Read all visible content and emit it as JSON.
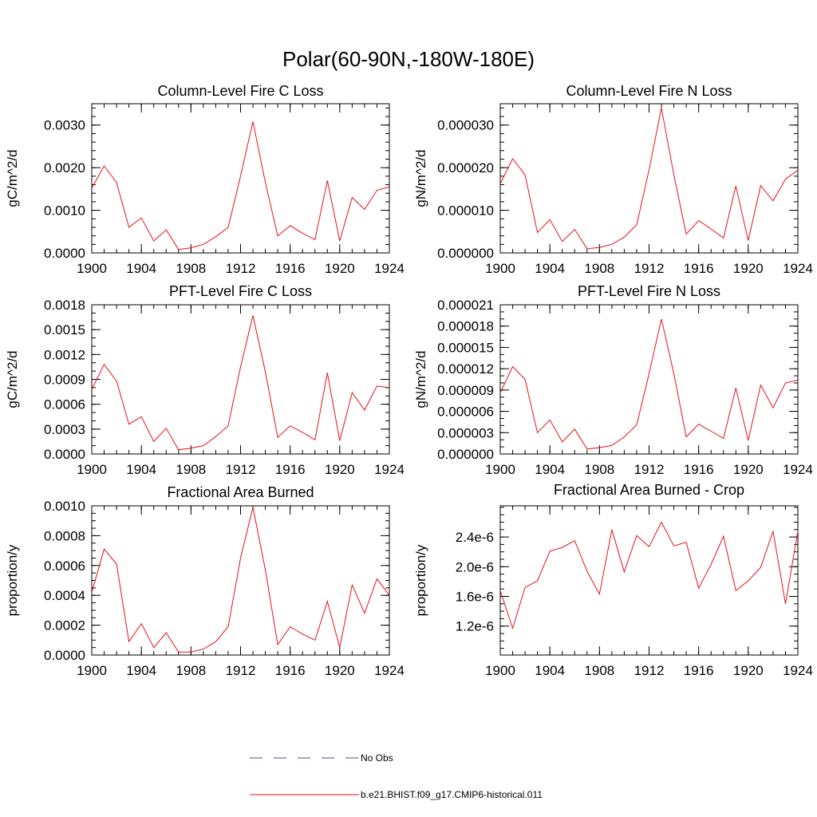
{
  "figure": {
    "title": "Polar(60-90N,-180W-180E)"
  },
  "colors": {
    "model": "#e8101a",
    "obs": "#4a4aa8",
    "axis": "#000000"
  },
  "legend": {
    "entries": [
      {
        "label": "No Obs",
        "style": "dashed",
        "color": "#4a4aa8"
      },
      {
        "label": "b.e21.BHIST.f09_g17.CMIP6-historical.011",
        "style": "solid",
        "color": "#e8101a"
      }
    ]
  },
  "chart_data": [
    {
      "type": "line",
      "title": "Column-Level Fire C Loss",
      "ylabel": "gC/m^2/d",
      "xlim": [
        1900,
        1924
      ],
      "ylim": [
        0,
        0.0035
      ],
      "xticks": [
        "1900",
        "1904",
        "1908",
        "1912",
        "1916",
        "1920",
        "1924"
      ],
      "xtick_values": [
        1900,
        1904,
        1908,
        1912,
        1916,
        1920,
        1924
      ],
      "yticks": [
        "0.0000",
        "0.0010",
        "0.0020",
        "0.0030"
      ],
      "ytick_values": [
        0,
        0.001,
        0.002,
        0.003
      ],
      "yminor_step": 0.0002,
      "x": [
        1900,
        1901,
        1902,
        1903,
        1904,
        1905,
        1906,
        1907,
        1908,
        1909,
        1910,
        1911,
        1912,
        1913,
        1914,
        1915,
        1916,
        1917,
        1918,
        1919,
        1920,
        1921,
        1922,
        1923,
        1924
      ],
      "series": [
        {
          "name": "b.e21.BHIST.f09_g17.CMIP6-historical.011",
          "values": [
            0.00152,
            0.00204,
            0.00165,
            0.0006,
            0.00082,
            0.00028,
            0.00054,
            8e-05,
            0.00012,
            0.0002,
            0.00038,
            0.0006,
            0.0018,
            0.00308,
            0.00165,
            0.0004,
            0.00064,
            0.00046,
            0.00031,
            0.0017,
            0.00028,
            0.0013,
            0.00102,
            0.00147,
            0.00155
          ]
        }
      ]
    },
    {
      "type": "line",
      "title": "Column-Level Fire N Loss",
      "ylabel": "gN/m^2/d",
      "xlim": [
        1900,
        1924
      ],
      "ylim": [
        0,
        3.5e-05
      ],
      "xticks": [
        "1900",
        "1904",
        "1908",
        "1912",
        "1916",
        "1920",
        "1924"
      ],
      "xtick_values": [
        1900,
        1904,
        1908,
        1912,
        1916,
        1920,
        1924
      ],
      "yticks": [
        "0.000000",
        "0.000010",
        "0.000020",
        "0.000030"
      ],
      "ytick_values": [
        0,
        1e-05,
        2e-05,
        3e-05
      ],
      "yminor_step": 2e-06,
      "x": [
        1900,
        1901,
        1902,
        1903,
        1904,
        1905,
        1906,
        1907,
        1908,
        1909,
        1910,
        1911,
        1912,
        1913,
        1914,
        1915,
        1916,
        1917,
        1918,
        1919,
        1920,
        1921,
        1922,
        1923,
        1924
      ],
      "series": [
        {
          "name": "b.e21.BHIST.f09_g17.CMIP6-historical.011",
          "values": [
            1.62e-05,
            2.21e-05,
            1.83e-05,
            4.8e-06,
            7.8e-06,
            2.7e-06,
            5.5e-06,
            1e-06,
            1.3e-06,
            2e-06,
            3.7e-06,
            6.6e-06,
            1.95e-05,
            3.4e-05,
            1.83e-05,
            4.4e-06,
            7.6e-06,
            5.6e-06,
            3.5e-06,
            1.57e-05,
            2.9e-06,
            1.58e-05,
            1.22e-05,
            1.73e-05,
            1.94e-05
          ]
        }
      ]
    },
    {
      "type": "line",
      "title": "PFT-Level Fire C Loss",
      "ylabel": "gC/m^2/d",
      "xlim": [
        1900,
        1924
      ],
      "ylim": [
        0,
        0.0018
      ],
      "xticks": [
        "1900",
        "1904",
        "1908",
        "1912",
        "1916",
        "1920",
        "1924"
      ],
      "xtick_values": [
        1900,
        1904,
        1908,
        1912,
        1916,
        1920,
        1924
      ],
      "yticks": [
        "0.0000",
        "0.0003",
        "0.0006",
        "0.0009",
        "0.0012",
        "0.0015",
        "0.0018"
      ],
      "ytick_values": [
        0,
        0.0003,
        0.0006,
        0.0009,
        0.0012,
        0.0015,
        0.0018
      ],
      "yminor_step": 0.0001,
      "x": [
        1900,
        1901,
        1902,
        1903,
        1904,
        1905,
        1906,
        1907,
        1908,
        1909,
        1910,
        1911,
        1912,
        1913,
        1914,
        1915,
        1916,
        1917,
        1918,
        1919,
        1920,
        1921,
        1922,
        1923,
        1924
      ],
      "series": [
        {
          "name": "b.e21.BHIST.f09_g17.CMIP6-historical.011",
          "values": [
            0.00078,
            0.00108,
            0.00088,
            0.00036,
            0.00045,
            0.00015,
            0.00031,
            5e-05,
            7e-05,
            0.0001,
            0.00021,
            0.00034,
            0.00105,
            0.00167,
            0.00099,
            0.0002,
            0.00034,
            0.00026,
            0.00017,
            0.00098,
            0.00016,
            0.00074,
            0.00053,
            0.00082,
            0.0008
          ]
        }
      ]
    },
    {
      "type": "line",
      "title": "PFT-Level Fire N Loss",
      "ylabel": "gN/m^2/d",
      "xlim": [
        1900,
        1924
      ],
      "ylim": [
        0,
        2.1e-05
      ],
      "xticks": [
        "1900",
        "1904",
        "1908",
        "1912",
        "1916",
        "1920",
        "1924"
      ],
      "xtick_values": [
        1900,
        1904,
        1908,
        1912,
        1916,
        1920,
        1924
      ],
      "yticks": [
        "0.000000",
        "0.000003",
        "0.000006",
        "0.000009",
        "0.000012",
        "0.000015",
        "0.000018",
        "0.000021"
      ],
      "ytick_values": [
        0,
        3e-06,
        6e-06,
        9e-06,
        1.2e-05,
        1.5e-05,
        1.8e-05,
        2.1e-05
      ],
      "yminor_step": 1e-06,
      "x": [
        1900,
        1901,
        1902,
        1903,
        1904,
        1905,
        1906,
        1907,
        1908,
        1909,
        1910,
        1911,
        1912,
        1913,
        1914,
        1915,
        1916,
        1917,
        1918,
        1919,
        1920,
        1921,
        1922,
        1923,
        1924
      ],
      "series": [
        {
          "name": "b.e21.BHIST.f09_g17.CMIP6-historical.011",
          "values": [
            8.6e-06,
            1.23e-05,
            1.05e-05,
            3e-06,
            4.8e-06,
            1.7e-06,
            3.5e-06,
            7e-07,
            9e-07,
            1.2e-06,
            2.4e-06,
            4.1e-06,
            1.13e-05,
            1.9e-05,
            1.13e-05,
            2.4e-06,
            4.2e-06,
            3.2e-06,
            2.2e-06,
            9.3e-06,
            1.9e-06,
            9.7e-06,
            6.5e-06,
            1e-05,
            1.04e-05
          ]
        }
      ]
    },
    {
      "type": "line",
      "title": "Fractional Area Burned",
      "ylabel": "proportion/y",
      "xlim": [
        1900,
        1924
      ],
      "ylim": [
        0,
        0.001
      ],
      "xticks": [
        "1900",
        "1904",
        "1908",
        "1912",
        "1916",
        "1920",
        "1924"
      ],
      "xtick_values": [
        1900,
        1904,
        1908,
        1912,
        1916,
        1920,
        1924
      ],
      "yticks": [
        "0.0000",
        "0.0002",
        "0.0004",
        "0.0006",
        "0.0008",
        "0.0010"
      ],
      "ytick_values": [
        0,
        0.0002,
        0.0004,
        0.0006,
        0.0008,
        0.001
      ],
      "yminor_step": 5e-05,
      "x": [
        1900,
        1901,
        1902,
        1903,
        1904,
        1905,
        1906,
        1907,
        1908,
        1909,
        1910,
        1911,
        1912,
        1913,
        1914,
        1915,
        1916,
        1917,
        1918,
        1919,
        1920,
        1921,
        1922,
        1923,
        1924
      ],
      "series": [
        {
          "name": "b.e21.BHIST.f09_g17.CMIP6-historical.011",
          "values": [
            0.00042,
            0.00071,
            0.00061,
            9e-05,
            0.00021,
            5e-05,
            0.00015,
            2e-05,
            2e-05,
            4e-05,
            9e-05,
            0.00019,
            0.00065,
            0.00099,
            0.00057,
            7e-05,
            0.00019,
            0.00014,
            0.0001,
            0.00036,
            5e-05,
            0.00047,
            0.00028,
            0.00051,
            0.0004
          ]
        }
      ]
    },
    {
      "type": "line",
      "title": "Fractional Area Burned - Crop",
      "ylabel": "proportion/y",
      "xlim": [
        1900,
        1924
      ],
      "ylim": [
        8.1e-07,
        2.82e-06
      ],
      "xticks": [
        "1900",
        "1904",
        "1908",
        "1912",
        "1916",
        "1920",
        "1924"
      ],
      "xtick_values": [
        1900,
        1904,
        1908,
        1912,
        1916,
        1920,
        1924
      ],
      "yticks": [
        "1.2e-6",
        "1.6e-6",
        "2.0e-6",
        "2.4e-6"
      ],
      "ytick_values": [
        1.2e-06,
        1.6e-06,
        2e-06,
        2.4e-06
      ],
      "yminor_step": 1e-07,
      "x": [
        1900,
        1901,
        1902,
        1903,
        1904,
        1905,
        1906,
        1907,
        1908,
        1909,
        1910,
        1911,
        1912,
        1913,
        1914,
        1915,
        1916,
        1917,
        1918,
        1919,
        1920,
        1921,
        1922,
        1923,
        1924
      ],
      "series": [
        {
          "name": "b.e21.BHIST.f09_g17.CMIP6-historical.011",
          "values": [
            1.68e-06,
            1.17e-06,
            1.72e-06,
            1.81e-06,
            2.21e-06,
            2.26e-06,
            2.35e-06,
            1.94e-06,
            1.63e-06,
            2.5e-06,
            1.93e-06,
            2.42e-06,
            2.27e-06,
            2.6e-06,
            2.28e-06,
            2.33e-06,
            1.71e-06,
            2.03e-06,
            2.41e-06,
            1.68e-06,
            1.81e-06,
            1.99e-06,
            2.48e-06,
            1.5e-06,
            2.48e-06
          ]
        }
      ]
    }
  ]
}
